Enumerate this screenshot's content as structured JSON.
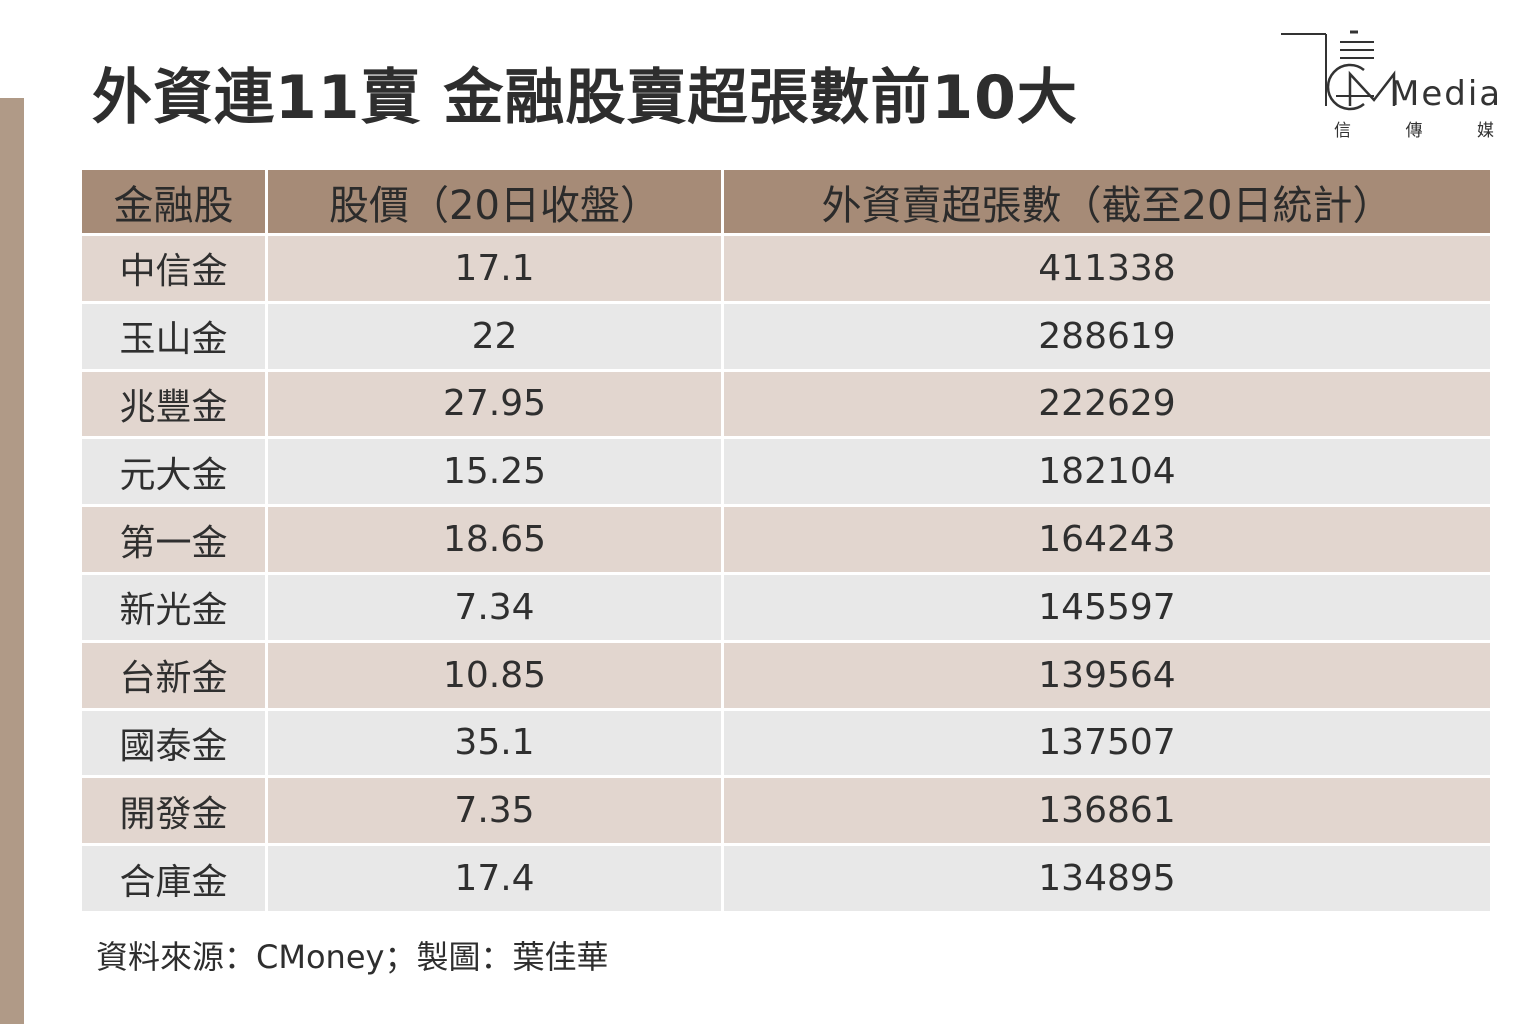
{
  "title": "外資連11賣 金融股賣超張數前10大",
  "logo": {
    "word": "Media",
    "sub": [
      "信",
      "傳",
      "媒"
    ]
  },
  "table": {
    "headers": [
      "金融股",
      "股價（20日收盤）",
      "外資賣超張數（截至20日統計）"
    ],
    "rows": [
      [
        "中信金",
        "17.1",
        "411338"
      ],
      [
        "玉山金",
        "22",
        "288619"
      ],
      [
        "兆豐金",
        "27.95",
        "222629"
      ],
      [
        "元大金",
        "15.25",
        "182104"
      ],
      [
        "第一金",
        "18.65",
        "164243"
      ],
      [
        "新光金",
        "7.34",
        "145597"
      ],
      [
        "台新金",
        "10.85",
        "139564"
      ],
      [
        "國泰金",
        "35.1",
        "137507"
      ],
      [
        "開發金",
        "7.35",
        "136861"
      ],
      [
        "合庫金",
        "17.4",
        "134895"
      ]
    ]
  },
  "source": "資料來源：CMoney；製圖：葉佳華",
  "colors": {
    "header_bg": "#a68b77",
    "row_odd": "#e2d6cf",
    "row_even": "#e8e8e8",
    "side_bar": "#b09a87"
  }
}
